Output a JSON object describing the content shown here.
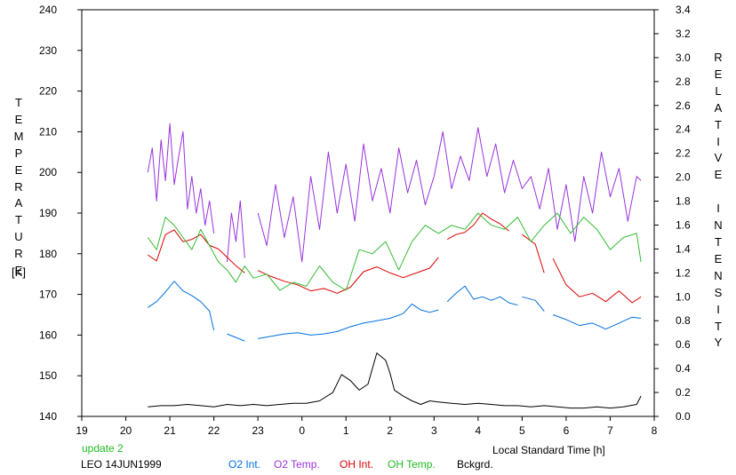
{
  "chart_data": {
    "type": "line",
    "left_axis_label": "TEMPERATURE",
    "left_axis_unit": "[K]",
    "right_axis_label": "RELATIVE INTENSITY",
    "xlabel": "Local Standard Time [h]",
    "update_note": "update 2",
    "site_date": "LEO 14JUN1999",
    "left_ylim": [
      140,
      240
    ],
    "right_ylim": [
      0.0,
      3.4
    ],
    "x_ticks": [
      "19",
      "20",
      "21",
      "22",
      "23",
      "0",
      "1",
      "2",
      "3",
      "4",
      "5",
      "6",
      "7",
      "8"
    ],
    "left_y_ticks": [
      "140",
      "150",
      "160",
      "170",
      "180",
      "190",
      "200",
      "210",
      "220",
      "230",
      "240"
    ],
    "right_y_ticks": [
      "0.0",
      "0.2",
      "0.4",
      "0.6",
      "0.8",
      "1.0",
      "1.2",
      "1.4",
      "1.6",
      "1.8",
      "2.0",
      "2.2",
      "2.4",
      "2.6",
      "2.8",
      "3.0",
      "3.2",
      "3.4"
    ],
    "series": [
      {
        "name": "O2 Int.",
        "color": "#0070e0",
        "axis": "right",
        "segments": [
          {
            "x": [
              20.5,
              20.7,
              20.9,
              21.1,
              21.3,
              21.5,
              21.7,
              21.9,
              22.0
            ],
            "y": [
              0.91,
              0.96,
              1.04,
              1.13,
              1.05,
              1.01,
              0.96,
              0.88,
              0.72
            ]
          },
          {
            "x": [
              22.3,
              22.5,
              22.7
            ],
            "y": [
              0.69,
              0.66,
              0.63
            ]
          },
          {
            "x": [
              23.0,
              23.3,
              23.6,
              23.9,
              24.2,
              24.5,
              24.8,
              25.1,
              25.4,
              25.7,
              26.0,
              26.3,
              26.5,
              26.7,
              26.9,
              27.1
            ],
            "y": [
              0.65,
              0.67,
              0.69,
              0.7,
              0.68,
              0.69,
              0.71,
              0.75,
              0.78,
              0.8,
              0.82,
              0.86,
              0.94,
              0.89,
              0.87,
              0.89
            ]
          },
          {
            "x": [
              27.3,
              27.5,
              27.7,
              27.9,
              28.1,
              28.3,
              28.5,
              28.7,
              28.9
            ],
            "y": [
              0.96,
              1.03,
              1.09,
              0.98,
              1.0,
              0.97,
              1.0,
              0.95,
              0.93
            ]
          },
          {
            "x": [
              29.0,
              29.3,
              29.5
            ],
            "y": [
              1.0,
              0.97,
              0.88
            ]
          },
          {
            "x": [
              29.7,
              30.0,
              30.3,
              30.6,
              30.9,
              31.2,
              31.5,
              31.7
            ],
            "y": [
              0.85,
              0.81,
              0.76,
              0.78,
              0.73,
              0.78,
              0.83,
              0.82
            ]
          }
        ]
      },
      {
        "name": "O2 Temp.",
        "color": "#9933dd",
        "axis": "left",
        "segments": [
          {
            "x": [
              20.5,
              20.6,
              20.7,
              20.8,
              20.9,
              21.0,
              21.1,
              21.2,
              21.3,
              21.4,
              21.5,
              21.6,
              21.7,
              21.8,
              21.9,
              22.0
            ],
            "y": [
              200,
              206,
              193,
              208,
              198,
              212,
              197,
              204,
              210,
              191,
              199,
              190,
              196,
              187,
              193,
              185
            ]
          },
          {
            "x": [
              22.3,
              22.4,
              22.5,
              22.6,
              22.7
            ],
            "y": [
              178,
              190,
              183,
              193,
              179
            ]
          },
          {
            "x": [
              23.0,
              23.2,
              23.4,
              23.6,
              23.8,
              24.0,
              24.2,
              24.4,
              24.6,
              24.8,
              25.0,
              25.2,
              25.4,
              25.6,
              25.8,
              26.0,
              26.2,
              26.4,
              26.6,
              26.8,
              27.0,
              27.2,
              27.4,
              27.6,
              27.8,
              28.0,
              28.2,
              28.4,
              28.6,
              28.8,
              29.0,
              29.2,
              29.4,
              29.6,
              29.8,
              30.0,
              30.2,
              30.4,
              30.6,
              30.8,
              31.0,
              31.2,
              31.4,
              31.6,
              31.7
            ],
            "y": [
              190,
              182,
              197,
              184,
              194,
              178,
              199,
              186,
              205,
              190,
              202,
              188,
              207,
              193,
              201,
              190,
              206,
              195,
              203,
              192,
              199,
              210,
              196,
              204,
              198,
              211,
              199,
              207,
              195,
              203,
              196,
              199,
              191,
              201,
              186,
              197,
              183,
              199,
              190,
              205,
              194,
              201,
              188,
              199,
              198
            ]
          }
        ]
      },
      {
        "name": "OH Int.",
        "color": "#dd0000",
        "axis": "right",
        "segments": [
          {
            "x": [
              20.5,
              20.7,
              20.9,
              21.1,
              21.3,
              21.5,
              21.7,
              21.9,
              22.1,
              22.3,
              22.5,
              22.7
            ],
            "y": [
              1.35,
              1.3,
              1.52,
              1.56,
              1.46,
              1.48,
              1.52,
              1.43,
              1.4,
              1.33,
              1.26,
              1.2
            ]
          },
          {
            "x": [
              23.0,
              23.3,
              23.6,
              23.9,
              24.2,
              24.5,
              24.8,
              25.1,
              25.4,
              25.7,
              26.0,
              26.3,
              26.6,
              26.9,
              27.1
            ],
            "y": [
              1.22,
              1.17,
              1.13,
              1.1,
              1.05,
              1.07,
              1.03,
              1.08,
              1.21,
              1.25,
              1.2,
              1.16,
              1.2,
              1.24,
              1.33
            ]
          },
          {
            "x": [
              27.3,
              27.5,
              27.7,
              27.9,
              28.1,
              28.3,
              28.5,
              28.7
            ],
            "y": [
              1.48,
              1.52,
              1.54,
              1.6,
              1.7,
              1.65,
              1.61,
              1.55
            ]
          },
          {
            "x": [
              29.0,
              29.3,
              29.5
            ],
            "y": [
              1.52,
              1.44,
              1.2
            ]
          },
          {
            "x": [
              29.7,
              30.0,
              30.3,
              30.6,
              30.9,
              31.2,
              31.5,
              31.7
            ],
            "y": [
              1.32,
              1.1,
              1.0,
              1.03,
              0.96,
              1.05,
              0.95,
              1.0
            ]
          }
        ]
      },
      {
        "name": "OH Temp.",
        "color": "#33bb33",
        "axis": "left",
        "segments": [
          {
            "x": [
              20.5,
              20.7,
              20.9,
              21.1,
              21.3,
              21.5,
              21.7,
              21.9,
              22.1,
              22.3,
              22.5,
              22.7,
              22.9,
              23.2,
              23.5,
              23.8,
              24.1,
              24.4,
              24.7,
              25.0,
              25.3,
              25.6,
              25.9,
              26.2,
              26.5,
              26.8,
              27.1,
              27.4,
              27.7,
              28.0,
              28.3,
              28.6,
              28.9,
              29.2,
              29.5,
              29.8,
              30.1,
              30.4,
              30.7,
              31.0,
              31.3,
              31.6,
              31.7
            ],
            "y": [
              184,
              181,
              189,
              187,
              184,
              181,
              186,
              182,
              178,
              176,
              173,
              177,
              174,
              175,
              171,
              173,
              172,
              177,
              173,
              171,
              181,
              180,
              183,
              176,
              183,
              187,
              185,
              187,
              186,
              190,
              187,
              186,
              189,
              183,
              187,
              190,
              185,
              189,
              186,
              181,
              184,
              185,
              178
            ]
          }
        ]
      },
      {
        "name": "Bckgrd.",
        "color": "#000000",
        "axis": "right",
        "segments": [
          {
            "x": [
              20.5,
              20.8,
              21.1,
              21.4,
              21.7,
              22.0,
              22.3,
              22.6,
              22.9,
              23.2,
              23.5,
              23.8,
              24.1,
              24.4,
              24.7,
              24.9,
              25.1,
              25.3,
              25.5,
              25.7,
              25.9,
              26.0,
              26.1,
              26.3,
              26.5,
              26.7,
              26.9,
              27.1,
              27.4,
              27.7,
              28.0,
              28.3,
              28.6,
              28.9,
              29.2,
              29.5,
              29.8,
              30.1,
              30.4,
              30.7,
              31.0,
              31.3,
              31.6,
              31.7
            ],
            "y": [
              0.08,
              0.09,
              0.09,
              0.1,
              0.09,
              0.08,
              0.1,
              0.09,
              0.1,
              0.09,
              0.1,
              0.11,
              0.11,
              0.13,
              0.2,
              0.35,
              0.3,
              0.22,
              0.27,
              0.53,
              0.47,
              0.36,
              0.22,
              0.17,
              0.13,
              0.1,
              0.13,
              0.12,
              0.11,
              0.1,
              0.11,
              0.1,
              0.09,
              0.09,
              0.08,
              0.09,
              0.08,
              0.07,
              0.07,
              0.08,
              0.07,
              0.08,
              0.1,
              0.17
            ]
          }
        ]
      }
    ]
  }
}
